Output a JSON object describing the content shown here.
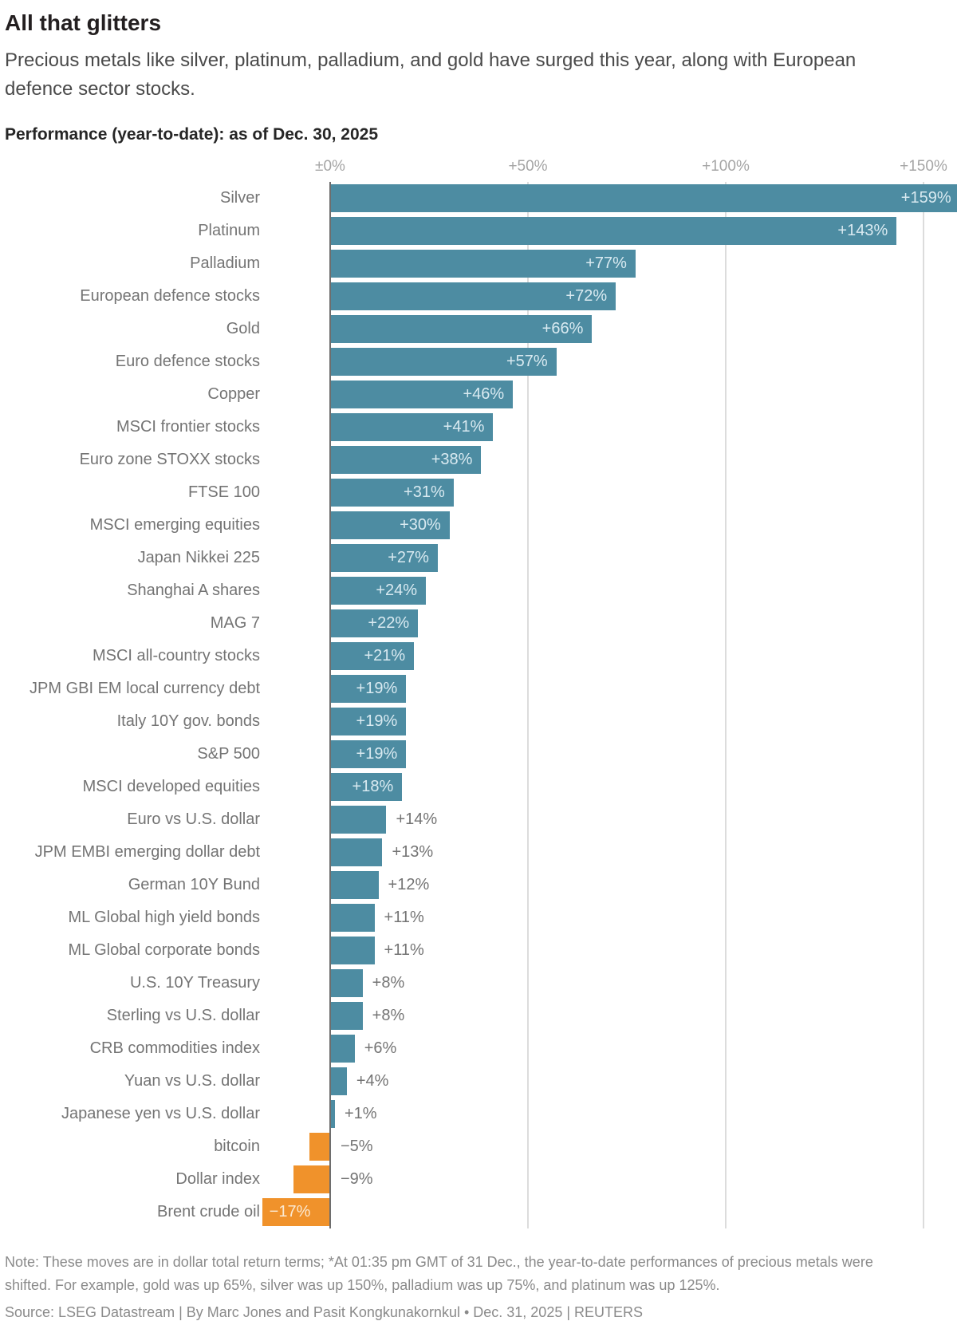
{
  "header": {
    "title": "All that glitters",
    "subtitle": "Precious metals like silver, platinum, palladium, and gold have surged this year, along with European defence sector stocks.",
    "chart_label": "Performance (year-to-date): as of Dec. 30, 2025"
  },
  "chart_data": {
    "type": "bar",
    "orientation": "horizontal",
    "title": "Performance (year-to-date): as of Dec. 30, 2025",
    "x_tick_labels": [
      "±0%",
      "+50%",
      "+100%",
      "+150%"
    ],
    "x_tick_values": [
      0,
      50,
      100,
      150
    ],
    "xlim": [
      -18,
      160
    ],
    "grid": "vertical",
    "positive_color": "#4d8ca2",
    "negative_color": "#f0922b",
    "categories": [
      "Silver",
      "Platinum",
      "Palladium",
      "European defence stocks",
      "Gold",
      "Euro defence stocks",
      "Copper",
      "MSCI frontier stocks",
      "Euro zone STOXX stocks",
      "FTSE 100",
      "MSCI emerging equities",
      "Japan Nikkei 225",
      "Shanghai A shares",
      "MAG 7",
      "MSCI all-country stocks",
      "JPM GBI EM local currency debt",
      "Italy 10Y gov. bonds",
      "S&P 500",
      "MSCI developed equities",
      "Euro vs U.S. dollar",
      "JPM EMBI emerging dollar debt",
      "German 10Y Bund",
      "ML Global high yield bonds",
      "ML Global corporate bonds",
      "U.S. 10Y Treasury",
      "Sterling vs U.S. dollar",
      "CRB commodities index",
      "Yuan vs U.S. dollar",
      "Japanese yen vs U.S. dollar",
      "bitcoin",
      "Dollar index",
      "Brent crude oil"
    ],
    "values": [
      159,
      143,
      77,
      72,
      66,
      57,
      46,
      41,
      38,
      31,
      30,
      27,
      24,
      22,
      21,
      19,
      19,
      19,
      18,
      14,
      13,
      12,
      11,
      11,
      8,
      8,
      6,
      4,
      1,
      -5,
      -9,
      -17
    ],
    "value_labels": [
      "+159%",
      "+143%",
      "+77%",
      "+72%",
      "+66%",
      "+57%",
      "+46%",
      "+41%",
      "+38%",
      "+31%",
      "+30%",
      "+27%",
      "+24%",
      "+22%",
      "+21%",
      "+19%",
      "+19%",
      "+19%",
      "+18%",
      "+14%",
      "+13%",
      "+12%",
      "+11%",
      "+11%",
      "+8%",
      "+8%",
      "+6%",
      "+4%",
      "+1%",
      "−5%",
      "−9%",
      "−17%"
    ]
  },
  "footer": {
    "note": "Note: These moves are in dollar total return terms; *At 01:35 pm GMT of 31 Dec., the year-to-date performances of precious metals were shifted. For example, gold was up 65%, silver was up 150%, palladium was up 75%, and platinum was up 125%.",
    "source": "Source: LSEG Datastream | By Marc Jones and Pasit Kongkunakornkul • Dec. 31, 2025 | REUTERS"
  }
}
